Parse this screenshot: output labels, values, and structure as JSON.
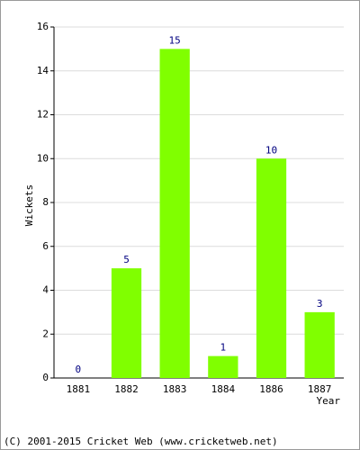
{
  "chart_data": {
    "type": "bar",
    "x_label": "Year",
    "y_label": "Wickets",
    "categories": [
      "1881",
      "1882",
      "1883",
      "1884",
      "1886",
      "1887"
    ],
    "values": [
      0,
      5,
      15,
      1,
      10,
      3
    ],
    "color": "#80ff00",
    "label_color": "#000080",
    "ylim": [
      0,
      16
    ],
    "yticks": [
      0,
      2,
      4,
      6,
      8,
      10,
      12,
      14,
      16
    ],
    "grid": true,
    "footer": "(C) 2001-2015 Cricket Web (www.cricketweb.net)"
  }
}
